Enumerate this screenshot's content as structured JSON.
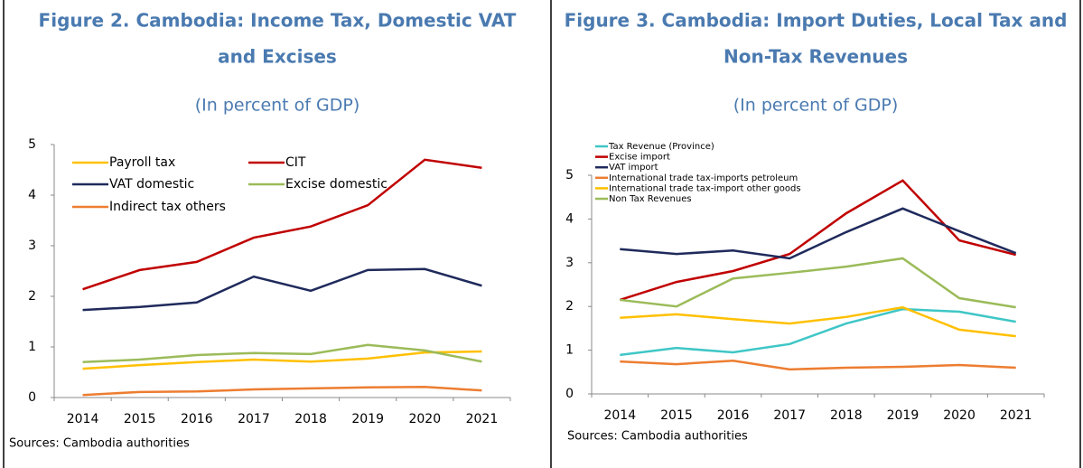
{
  "chart_data": [
    {
      "type": "line",
      "title": [
        "Figure 2. Cambodia:  Income Tax, Domestic VAT",
        "and Excises"
      ],
      "subtitle": "(In percent of GDP)",
      "source": "Sources: Cambodia authorities",
      "categories": [
        "2014",
        "2015",
        "2016",
        "2017",
        "2018",
        "2019",
        "2020",
        "2021"
      ],
      "ylim": [
        0,
        5
      ],
      "yticks": [
        0,
        1,
        2,
        3,
        4,
        5
      ],
      "series": [
        {
          "name": "Payroll tax",
          "color": "#ffc000",
          "values": [
            0.57,
            0.64,
            0.7,
            0.75,
            0.71,
            0.77,
            0.89,
            0.91
          ]
        },
        {
          "name": "CIT",
          "color": "#c00000",
          "values": [
            2.14,
            2.52,
            2.68,
            3.16,
            3.38,
            3.8,
            4.7,
            4.54
          ]
        },
        {
          "name": "VAT domestic",
          "color": "#1f2a5c",
          "values": [
            1.73,
            1.79,
            1.88,
            2.39,
            2.11,
            2.52,
            2.54,
            2.21
          ]
        },
        {
          "name": "Excise domestic",
          "color": "#9bbb59",
          "values": [
            0.7,
            0.75,
            0.84,
            0.88,
            0.86,
            1.04,
            0.93,
            0.71
          ]
        },
        {
          "name": "Indirect tax others",
          "color": "#ed7d31",
          "values": [
            0.05,
            0.11,
            0.12,
            0.16,
            0.18,
            0.2,
            0.21,
            0.14
          ]
        }
      ]
    },
    {
      "type": "line",
      "title": [
        "Figure 3. Cambodia:  Import Duties, Local Tax and",
        "Non-Tax Revenues"
      ],
      "subtitle": "(In percent of GDP)",
      "source": "Sources: Cambodia authorities",
      "categories": [
        "2014",
        "2015",
        "2016",
        "2017",
        "2018",
        "2019",
        "2020",
        "2021"
      ],
      "ylim": [
        0,
        5
      ],
      "yticks": [
        0,
        1,
        2,
        3,
        4,
        5
      ],
      "series": [
        {
          "name": "Tax Revenue (Province)",
          "color": "#3fc6c6",
          "values": [
            0.89,
            1.05,
            0.95,
            1.14,
            1.61,
            1.94,
            1.88,
            1.65
          ]
        },
        {
          "name": "Excise import",
          "color": "#c00000",
          "values": [
            2.15,
            2.56,
            2.81,
            3.2,
            4.13,
            4.88,
            3.51,
            3.18
          ]
        },
        {
          "name": "VAT import",
          "color": "#1f2a5c",
          "values": [
            3.31,
            3.2,
            3.28,
            3.1,
            3.7,
            4.24,
            3.72,
            3.22
          ]
        },
        {
          "name": "International trade tax-imports petroleum",
          "color": "#ed7d31",
          "values": [
            0.74,
            0.68,
            0.76,
            0.56,
            0.6,
            0.62,
            0.66,
            0.6
          ]
        },
        {
          "name": "International trade tax-import other goods",
          "color": "#ffc000",
          "values": [
            1.74,
            1.82,
            1.71,
            1.61,
            1.76,
            1.98,
            1.47,
            1.32
          ]
        },
        {
          "name": "Non Tax Revenues",
          "color": "#9bbb59",
          "values": [
            2.15,
            2.0,
            2.64,
            2.77,
            2.91,
            3.1,
            2.19,
            1.98
          ]
        }
      ]
    }
  ]
}
